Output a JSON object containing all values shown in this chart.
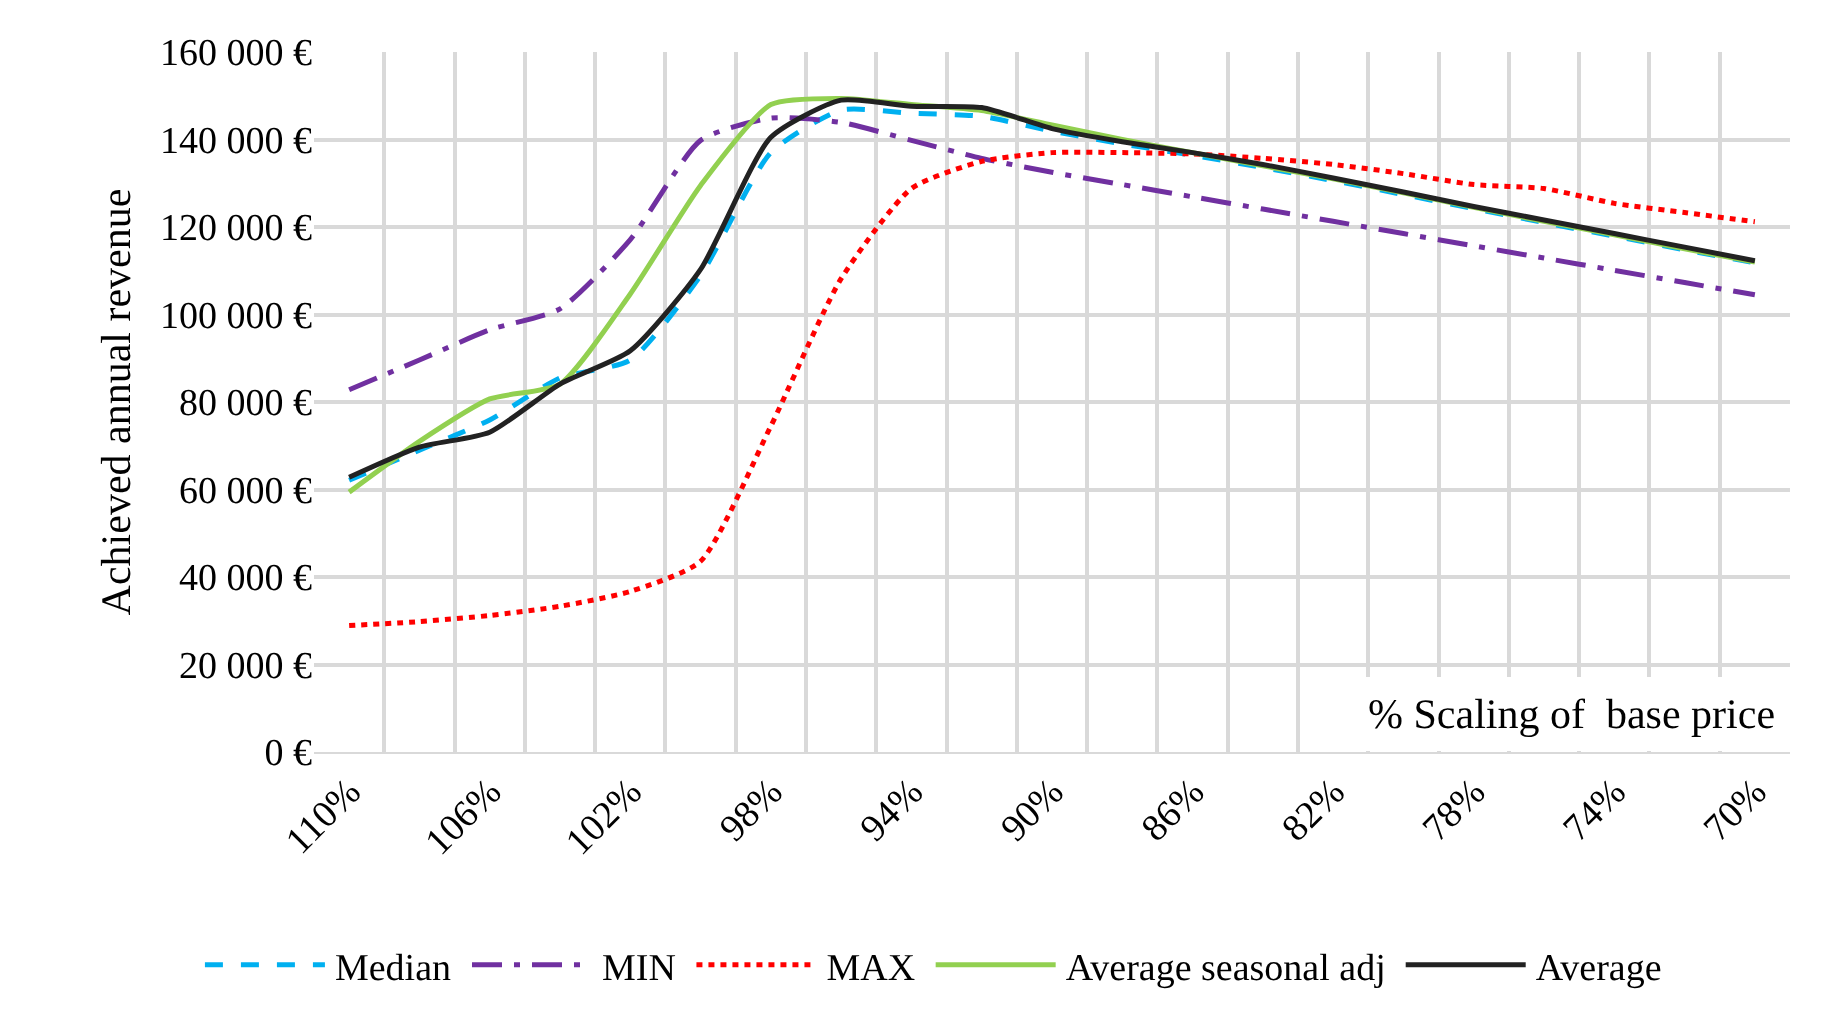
{
  "chart_data": {
    "type": "line",
    "ylabel": "Achieved annual revenue",
    "xlabel": "% Scaling of  base price",
    "categories": [
      "110%",
      null,
      "106%",
      null,
      "102%",
      null,
      "98%",
      null,
      "94%",
      null,
      "90%",
      null,
      "86%",
      null,
      "82%",
      null,
      "78%",
      null,
      "74%",
      null,
      "70%"
    ],
    "ylim": [
      0,
      160000
    ],
    "yticks": [
      {
        "value": 0,
        "label": "0 €"
      },
      {
        "value": 20000,
        "label": "20 000 €"
      },
      {
        "value": 40000,
        "label": "40 000 €"
      },
      {
        "value": 60000,
        "label": "60 000 €"
      },
      {
        "value": 80000,
        "label": "80 000 €"
      },
      {
        "value": 100000,
        "label": "100 000 €"
      },
      {
        "value": 120000,
        "label": "120 000 €"
      },
      {
        "value": 140000,
        "label": "140 000 €"
      },
      {
        "value": 160000,
        "label": "160 000 €"
      }
    ],
    "grid": true,
    "legend": "bottom",
    "marker": "none",
    "series": [
      {
        "name": "Median",
        "color": "#00b0f0",
        "line_style": "dashed",
        "values": [
          62100,
          69000,
          75900,
          85500,
          89600,
          108900,
          137000,
          146700,
          146000,
          145300,
          141900,
          139000,
          136400,
          133600,
          130600,
          127400,
          124200,
          121000,
          117900,
          114800,
          111800
        ]
      },
      {
        "name": "MIN",
        "color": "#7030a0",
        "line_style": "dashdot",
        "values": [
          82800,
          89600,
          96500,
          101300,
          117100,
          139800,
          144900,
          143900,
          139800,
          135700,
          132500,
          129700,
          126900,
          124100,
          121300,
          118500,
          115700,
          112900,
          110100,
          107300,
          104500
        ]
      },
      {
        "name": "MAX",
        "color": "#ff0000",
        "line_style": "dotted",
        "values": [
          28900,
          29800,
          31200,
          33300,
          36700,
          43600,
          74500,
          108200,
          128800,
          135000,
          137000,
          137000,
          136700,
          135700,
          134300,
          132200,
          129700,
          128800,
          125400,
          123300,
          121200
        ]
      },
      {
        "name": "Average seasonal adj",
        "color": "#92d050",
        "line_style": "solid",
        "values": [
          59400,
          71000,
          80700,
          84100,
          104700,
          129500,
          148000,
          149400,
          148000,
          146600,
          143300,
          140000,
          137000,
          134000,
          131000,
          127800,
          124500,
          121300,
          118200,
          115000,
          112000
        ]
      },
      {
        "name": "Average",
        "color": "#222222",
        "line_style": "solid",
        "values": [
          62800,
          69700,
          73100,
          84100,
          91700,
          110300,
          140500,
          149000,
          147600,
          147300,
          142500,
          139500,
          137000,
          134300,
          131200,
          128000,
          124700,
          121600,
          118500,
          115400,
          112300
        ]
      }
    ]
  }
}
